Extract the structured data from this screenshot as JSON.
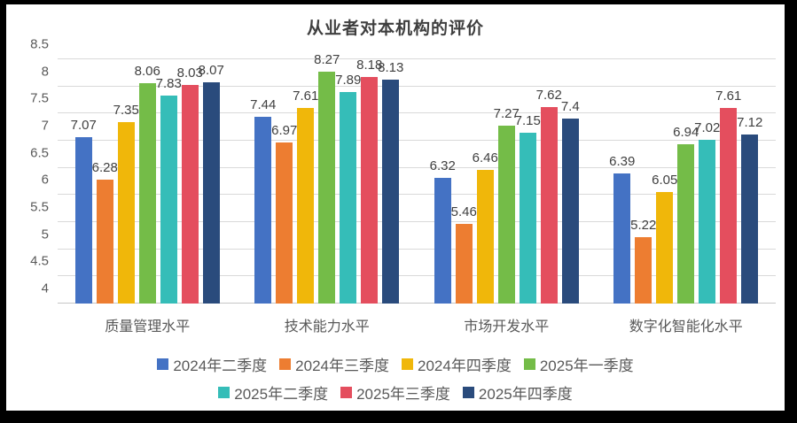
{
  "chart_data": {
    "type": "bar",
    "title": "从业者对本机构的评价",
    "categories": [
      "质量管理水平",
      "技术能力水平",
      "市场开发水平",
      "数字化智能化水平"
    ],
    "series": [
      {
        "name": "2024年二季度",
        "color": "#4472C4",
        "values": [
          7.07,
          7.44,
          6.32,
          6.39
        ]
      },
      {
        "name": "2024年三季度",
        "color": "#ED7D31",
        "values": [
          6.28,
          6.97,
          5.46,
          5.22
        ]
      },
      {
        "name": "2024年四季度",
        "color": "#F0B70A",
        "values": [
          7.35,
          7.61,
          6.46,
          6.05
        ]
      },
      {
        "name": "2025年一季度",
        "color": "#74BC48",
        "values": [
          8.06,
          8.27,
          7.27,
          6.94
        ]
      },
      {
        "name": "2025年二季度",
        "color": "#35BDB8",
        "values": [
          7.83,
          7.89,
          7.15,
          7.02
        ]
      },
      {
        "name": "2025年三季度",
        "color": "#E44E5E",
        "values": [
          8.03,
          8.18,
          7.62,
          7.61
        ]
      },
      {
        "name": "2025年四季度",
        "color": "#2A4B7C",
        "values": [
          8.07,
          8.13,
          7.4,
          7.12
        ]
      }
    ],
    "ylim": [
      4,
      8.5
    ],
    "ytick_step": 0.5,
    "ytick_labels": [
      "4",
      "4.5",
      "5",
      "5.5",
      "6",
      "6.5",
      "7",
      "7.5",
      "8",
      "8.5"
    ],
    "grid": true,
    "data_labels": true,
    "legend_position": "bottom",
    "legend_rows": [
      4,
      3
    ],
    "colors": {
      "gridline": "#d9d9d9",
      "axis_text": "#595959",
      "data_label_text": "#404040",
      "title_text": "#3f3f3f",
      "plot_background": "#ffffff",
      "frame_background": "#000000"
    }
  }
}
